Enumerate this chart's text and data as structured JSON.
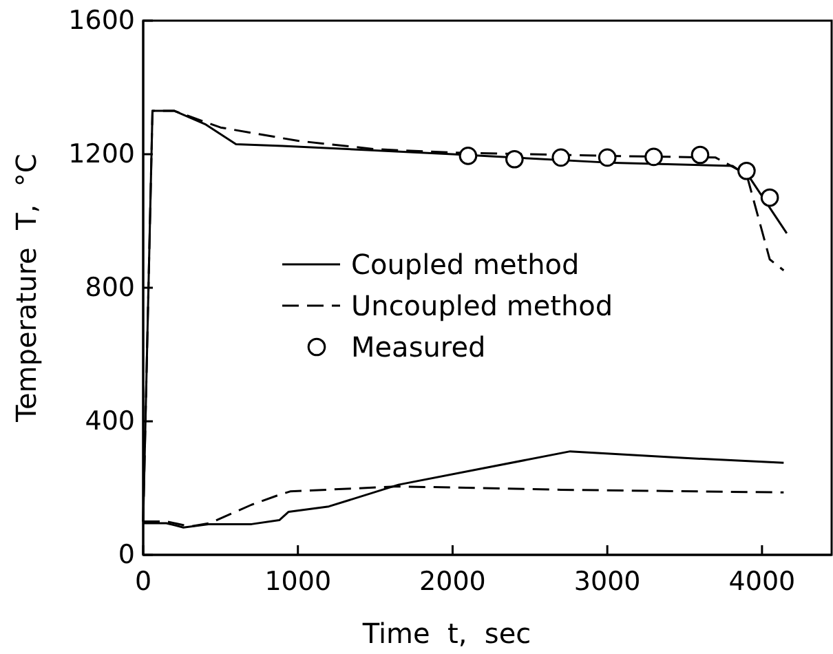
{
  "chart_data": {
    "type": "line",
    "xlabel": "Time  t,  sec",
    "ylabel": "Temperature  T,  °C",
    "xlim": [
      0,
      4450
    ],
    "ylim": [
      0,
      1600
    ],
    "xticks": [
      0,
      1000,
      2000,
      3000,
      4000
    ],
    "yticks": [
      0,
      400,
      800,
      1200,
      1600
    ],
    "grid": false,
    "legend": "center",
    "series": [
      {
        "name": "Coupled method",
        "line_style": "solid",
        "marker": "none",
        "color": "#000000",
        "x": [
          0,
          60,
          200,
          400,
          600,
          900,
          2000,
          3000,
          3810,
          3920,
          4160
        ],
        "values": [
          100,
          1330,
          1330,
          1290,
          1230,
          1225,
          1200,
          1175,
          1165,
          1130,
          963
        ]
      },
      {
        "name": "Uncoupled method",
        "line_style": "dashed",
        "marker": "none",
        "color": "#000000",
        "x": [
          0,
          60,
          200,
          500,
          1000,
          1500,
          2000,
          3000,
          3700,
          3900,
          4050,
          4140
        ],
        "values": [
          100,
          1330,
          1330,
          1280,
          1240,
          1215,
          1205,
          1195,
          1190,
          1140,
          885,
          852
        ]
      },
      {
        "name": "Measured",
        "type": "scatter",
        "marker": "circle",
        "color": "#000000",
        "x": [
          2100,
          2400,
          2700,
          3000,
          3300,
          3600,
          3900,
          4050
        ],
        "values": [
          1195,
          1185,
          1190,
          1190,
          1192,
          1198,
          1150,
          1070
        ]
      },
      {
        "line_style": "solid",
        "marker": "none",
        "color": "#000000",
        "x": [
          0,
          150,
          260,
          430,
          700,
          880,
          940,
          1200,
          1650,
          2760,
          3500,
          4140
        ],
        "values": [
          95,
          95,
          82,
          92,
          92,
          104,
          129,
          145,
          210,
          310,
          290,
          276
        ]
      },
      {
        "line_style": "dashed",
        "marker": "none",
        "color": "#000000",
        "x": [
          0,
          150,
          300,
          430,
          700,
          880,
          950,
          1650,
          2700,
          4140
        ],
        "values": [
          100,
          100,
          85,
          95,
          150,
          180,
          190,
          205,
          195,
          187
        ]
      }
    ]
  }
}
